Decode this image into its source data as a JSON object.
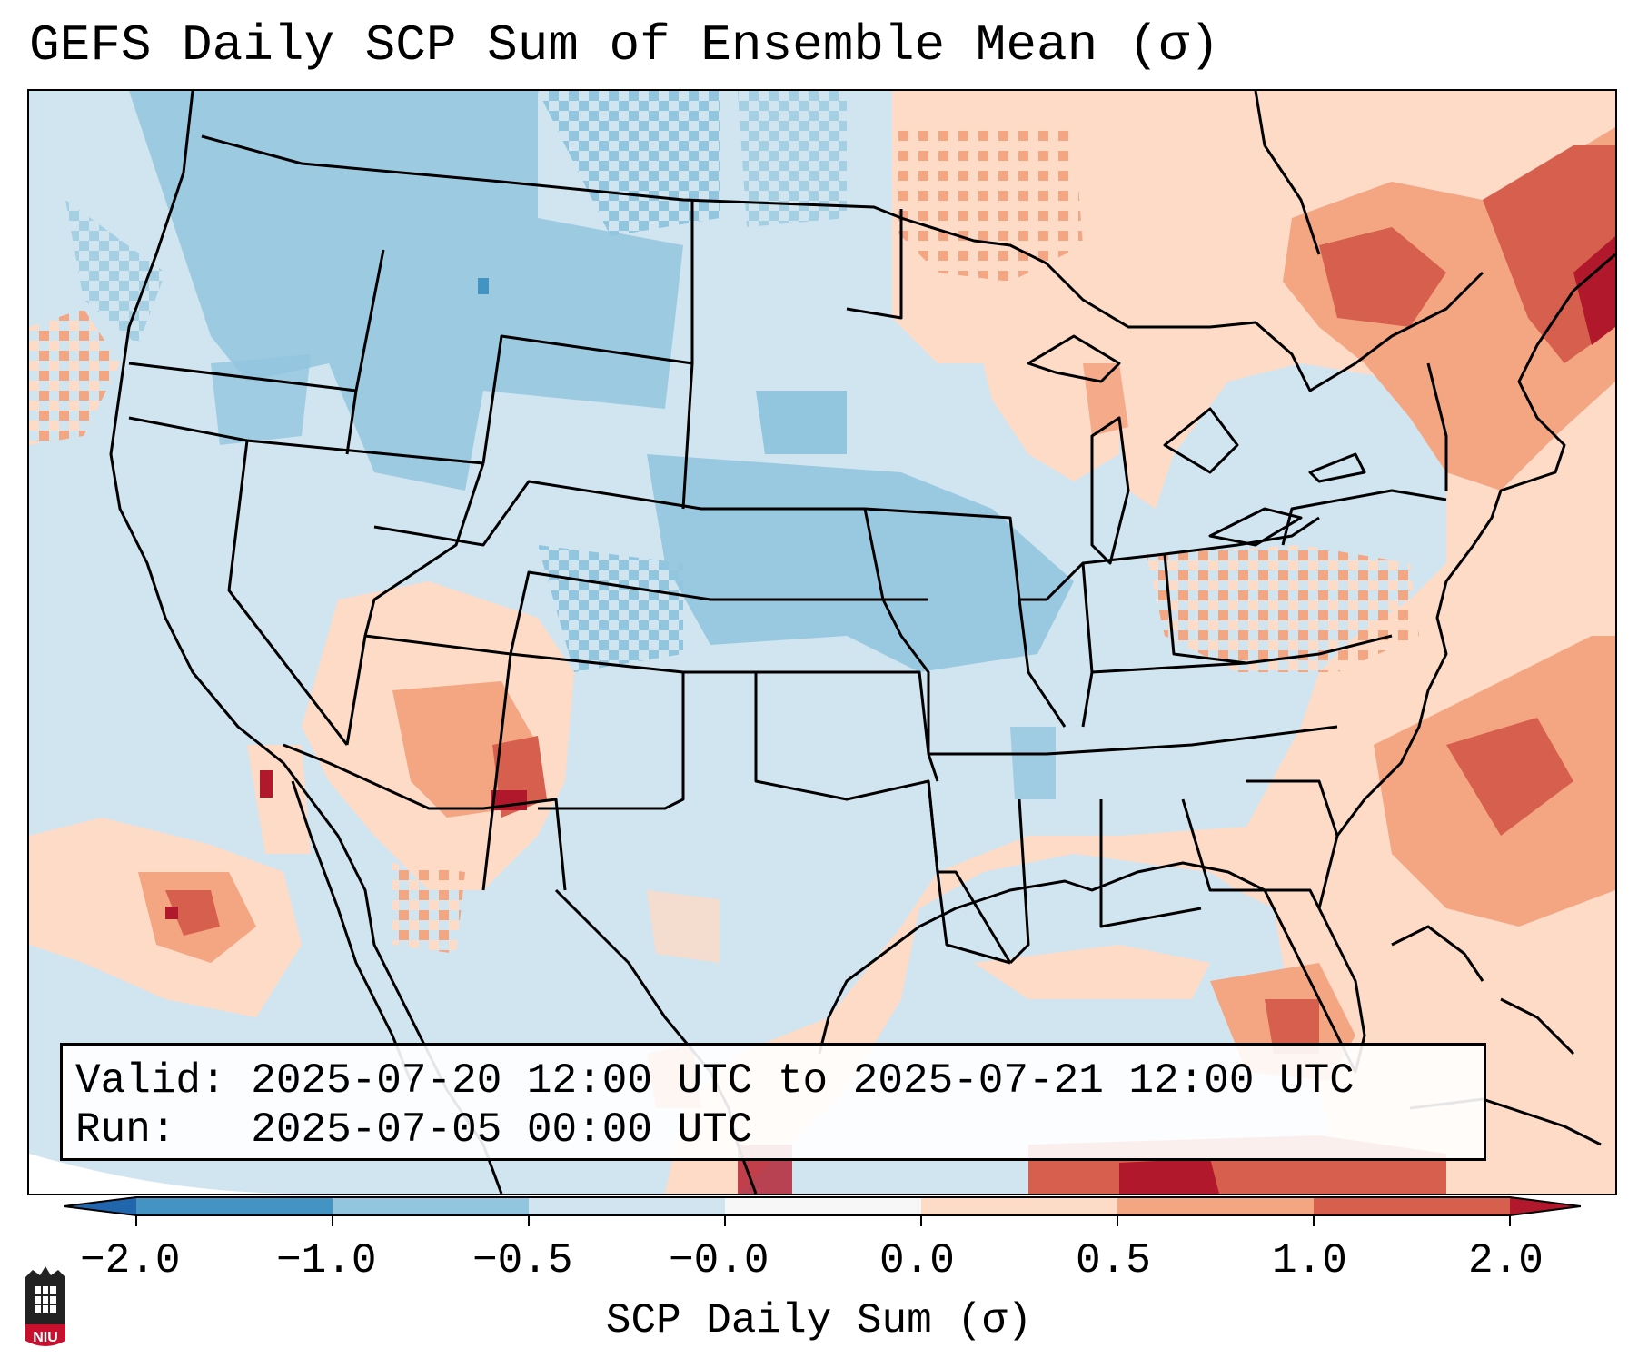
{
  "title": "GEFS Daily SCP Sum of Ensemble Mean (σ)",
  "info": {
    "valid_label": "Valid:",
    "valid_value": "2025-07-20 12:00 UTC to 2025-07-21 12:00 UTC",
    "run_label": "Run:",
    "run_value": "2025-07-05 00:00 UTC"
  },
  "colorbar": {
    "label": "SCP Daily Sum (σ)",
    "ticks": [
      "−2.0",
      "−1.0",
      "−0.5",
      "−0.0",
      "0.0",
      "0.5",
      "1.0",
      "2.0"
    ],
    "colors": {
      "under": "#2166ac",
      "bin_m2_m1": "#4393c3",
      "bin_m1_m05": "#92c5de",
      "bin_m05_0": "#d1e5f0",
      "bin_0": "#f7f7f7",
      "bin_0_05": "#fddbc7",
      "bin_05_1": "#f4a582",
      "bin_1_2": "#d6604d",
      "over": "#b2182b"
    }
  },
  "logo": {
    "text": "NIU",
    "color": "#c8102e"
  }
}
